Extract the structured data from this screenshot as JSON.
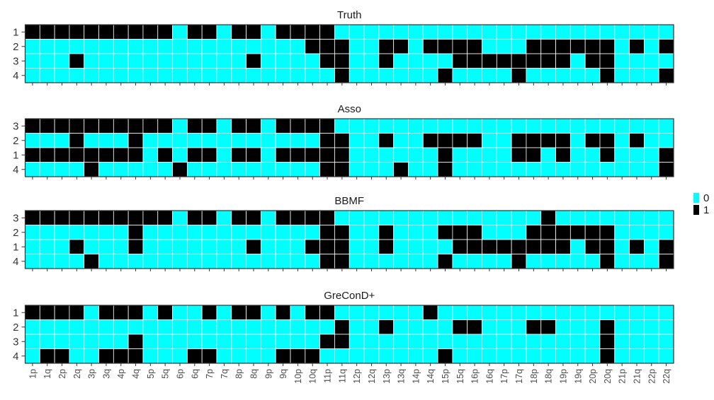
{
  "colors": {
    "zero": "#00ffff",
    "one": "#000000",
    "grid": "#ffffff",
    "frame": "#333333"
  },
  "legend": {
    "labels": [
      "0",
      "1"
    ]
  },
  "columns": [
    "1p",
    "1q",
    "2p",
    "2q",
    "3p",
    "3q",
    "4p",
    "4q",
    "5p",
    "5q",
    "6p",
    "6q",
    "7p",
    "7q",
    "8p",
    "8q",
    "9p",
    "9q",
    "10p",
    "10q",
    "11p",
    "11q",
    "12p",
    "12q",
    "13p",
    "13q",
    "14p",
    "14q",
    "15p",
    "15q",
    "16p",
    "16q",
    "17p",
    "17q",
    "18p",
    "18q",
    "19p",
    "19q",
    "20p",
    "20q",
    "21p",
    "21q",
    "22p",
    "22q"
  ],
  "chart_data": [
    {
      "type": "heatmap",
      "title": "Truth",
      "rows": [
        "1",
        "2",
        "3",
        "4"
      ],
      "values": [
        [
          1,
          1,
          1,
          1,
          1,
          1,
          1,
          1,
          1,
          1,
          0,
          1,
          1,
          0,
          1,
          1,
          0,
          1,
          1,
          1,
          1,
          0,
          0,
          0,
          0,
          0,
          0,
          0,
          0,
          0,
          0,
          0,
          0,
          0,
          0,
          0,
          0,
          0,
          0,
          0,
          0,
          0,
          0,
          0
        ],
        [
          0,
          0,
          0,
          0,
          0,
          0,
          0,
          0,
          0,
          0,
          0,
          0,
          0,
          0,
          0,
          0,
          0,
          0,
          0,
          1,
          1,
          1,
          0,
          0,
          1,
          1,
          0,
          1,
          1,
          1,
          1,
          0,
          0,
          0,
          1,
          1,
          1,
          1,
          1,
          1,
          0,
          1,
          0,
          1
        ],
        [
          0,
          0,
          0,
          1,
          0,
          0,
          0,
          0,
          0,
          0,
          0,
          0,
          0,
          0,
          0,
          1,
          0,
          0,
          0,
          0,
          1,
          1,
          0,
          0,
          1,
          0,
          0,
          0,
          0,
          1,
          1,
          1,
          1,
          1,
          1,
          1,
          1,
          0,
          1,
          1,
          0,
          0,
          0,
          0
        ],
        [
          0,
          0,
          0,
          0,
          0,
          0,
          0,
          0,
          0,
          0,
          0,
          0,
          0,
          0,
          0,
          0,
          0,
          0,
          0,
          0,
          0,
          1,
          0,
          0,
          0,
          0,
          0,
          0,
          1,
          0,
          0,
          0,
          0,
          1,
          0,
          0,
          0,
          0,
          0,
          1,
          0,
          0,
          0,
          1
        ]
      ]
    },
    {
      "type": "heatmap",
      "title": "Asso",
      "rows": [
        "3",
        "2",
        "1",
        "4"
      ],
      "values": [
        [
          1,
          1,
          1,
          1,
          1,
          1,
          1,
          1,
          1,
          1,
          0,
          1,
          1,
          0,
          1,
          1,
          0,
          1,
          1,
          1,
          1,
          0,
          0,
          0,
          0,
          0,
          0,
          0,
          0,
          0,
          0,
          0,
          0,
          0,
          0,
          0,
          0,
          0,
          0,
          0,
          0,
          0,
          0,
          0
        ],
        [
          0,
          0,
          0,
          1,
          0,
          0,
          0,
          1,
          0,
          0,
          0,
          0,
          0,
          0,
          0,
          0,
          0,
          0,
          0,
          0,
          1,
          1,
          0,
          0,
          1,
          0,
          0,
          1,
          1,
          1,
          1,
          0,
          0,
          1,
          1,
          1,
          1,
          0,
          1,
          1,
          0,
          1,
          0,
          0
        ],
        [
          1,
          1,
          1,
          1,
          1,
          1,
          1,
          1,
          0,
          1,
          0,
          1,
          1,
          0,
          1,
          1,
          0,
          1,
          1,
          1,
          1,
          1,
          0,
          0,
          0,
          0,
          0,
          0,
          1,
          0,
          0,
          0,
          0,
          1,
          1,
          0,
          1,
          0,
          0,
          1,
          0,
          0,
          0,
          1
        ],
        [
          0,
          0,
          0,
          0,
          1,
          0,
          0,
          0,
          0,
          0,
          1,
          0,
          0,
          0,
          0,
          0,
          0,
          0,
          0,
          0,
          1,
          1,
          0,
          0,
          0,
          1,
          0,
          0,
          1,
          0,
          0,
          0,
          0,
          0,
          0,
          0,
          0,
          0,
          0,
          0,
          0,
          0,
          0,
          1
        ]
      ]
    },
    {
      "type": "heatmap",
      "title": "BBMF",
      "rows": [
        "3",
        "2",
        "1",
        "4"
      ],
      "values": [
        [
          1,
          1,
          1,
          1,
          1,
          1,
          1,
          1,
          1,
          1,
          0,
          1,
          1,
          0,
          1,
          1,
          0,
          1,
          1,
          1,
          1,
          0,
          0,
          0,
          0,
          0,
          0,
          0,
          0,
          0,
          0,
          0,
          0,
          0,
          0,
          1,
          0,
          0,
          0,
          0,
          0,
          0,
          0,
          0
        ],
        [
          0,
          0,
          0,
          0,
          0,
          0,
          0,
          1,
          0,
          0,
          0,
          0,
          0,
          0,
          0,
          0,
          0,
          0,
          0,
          0,
          1,
          1,
          0,
          0,
          1,
          0,
          0,
          0,
          1,
          1,
          1,
          0,
          0,
          0,
          1,
          1,
          1,
          1,
          1,
          1,
          0,
          0,
          0,
          0
        ],
        [
          0,
          0,
          0,
          1,
          0,
          0,
          0,
          1,
          0,
          0,
          0,
          0,
          0,
          0,
          0,
          1,
          0,
          0,
          0,
          1,
          1,
          1,
          0,
          0,
          1,
          0,
          0,
          0,
          0,
          1,
          1,
          1,
          1,
          1,
          1,
          1,
          1,
          0,
          1,
          1,
          0,
          1,
          0,
          1
        ],
        [
          0,
          0,
          0,
          0,
          1,
          0,
          0,
          0,
          0,
          0,
          0,
          0,
          0,
          0,
          0,
          0,
          0,
          0,
          0,
          0,
          1,
          1,
          0,
          0,
          0,
          0,
          0,
          0,
          1,
          0,
          0,
          0,
          0,
          1,
          0,
          0,
          0,
          0,
          0,
          1,
          0,
          0,
          0,
          1
        ]
      ]
    },
    {
      "type": "heatmap",
      "title": "GreConD+",
      "rows": [
        "1",
        "2",
        "3",
        "4"
      ],
      "values": [
        [
          1,
          1,
          1,
          1,
          0,
          1,
          1,
          1,
          0,
          1,
          0,
          0,
          1,
          0,
          1,
          1,
          0,
          1,
          0,
          1,
          1,
          0,
          0,
          0,
          0,
          0,
          0,
          1,
          0,
          0,
          0,
          0,
          0,
          0,
          0,
          0,
          0,
          0,
          0,
          0,
          0,
          0,
          0,
          0
        ],
        [
          0,
          0,
          0,
          0,
          0,
          0,
          0,
          0,
          0,
          0,
          0,
          0,
          0,
          0,
          0,
          0,
          0,
          0,
          0,
          0,
          0,
          1,
          0,
          0,
          1,
          0,
          0,
          0,
          0,
          1,
          1,
          0,
          0,
          0,
          1,
          1,
          0,
          0,
          0,
          1,
          0,
          0,
          0,
          0
        ],
        [
          0,
          0,
          0,
          0,
          0,
          0,
          0,
          1,
          0,
          0,
          0,
          0,
          0,
          0,
          0,
          0,
          0,
          0,
          0,
          0,
          1,
          1,
          0,
          0,
          0,
          0,
          0,
          0,
          0,
          0,
          0,
          0,
          0,
          0,
          0,
          0,
          0,
          0,
          0,
          1,
          0,
          0,
          0,
          0
        ],
        [
          0,
          1,
          1,
          0,
          0,
          1,
          1,
          1,
          0,
          0,
          0,
          1,
          1,
          0,
          0,
          0,
          0,
          1,
          1,
          1,
          0,
          0,
          0,
          0,
          0,
          0,
          0,
          0,
          1,
          0,
          0,
          0,
          0,
          0,
          0,
          0,
          0,
          0,
          0,
          1,
          0,
          0,
          0,
          0
        ]
      ]
    }
  ]
}
